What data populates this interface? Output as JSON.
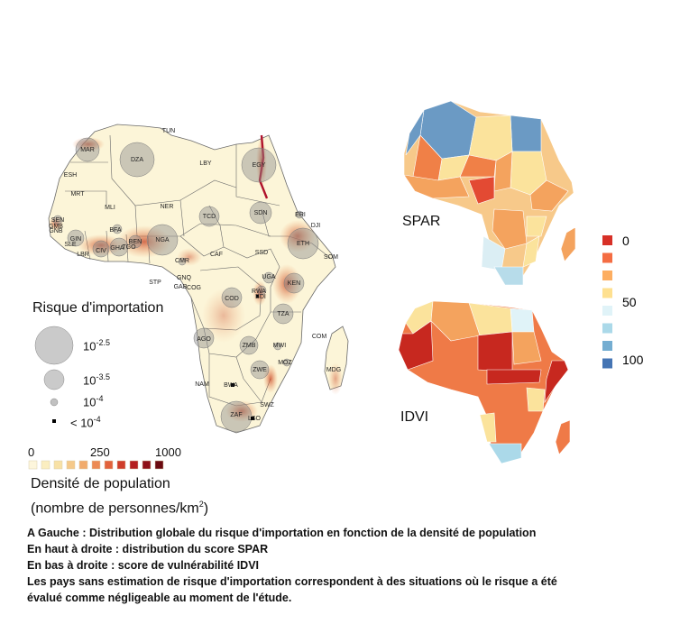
{
  "risk_legend": {
    "title": "Risque d'importation",
    "levels": [
      {
        "label_base": "10",
        "label_exp": "-2.5"
      },
      {
        "label_base": "10",
        "label_exp": "-3.5"
      },
      {
        "label_base": "10",
        "label_exp": "-4"
      },
      {
        "label_base": "< 10",
        "label_exp": "-4"
      }
    ]
  },
  "density_legend": {
    "ticks": [
      "0",
      "250",
      "1000"
    ],
    "title_line1": "Densité de population",
    "title_line2_prefix": "(nombre de personnes/km",
    "title_line2_exp": "2",
    "title_line2_suffix": ")",
    "colors": [
      "#fdf6dc",
      "#fbeec0",
      "#f8e1a6",
      "#f5c98a",
      "#f1ab6c",
      "#ec8a52",
      "#e2623b",
      "#cf3d2a",
      "#b4201f",
      "#8e1117",
      "#6b0a10"
    ]
  },
  "maps": {
    "spar_label": "SPAR",
    "idvi_label": "IDVI"
  },
  "score_legend": {
    "ticks": [
      "0",
      "50",
      "100"
    ],
    "colors": [
      "#d73027",
      "#f46d43",
      "#fdae61",
      "#fee090",
      "#e0f3f8",
      "#abd9e9",
      "#74add1",
      "#4575b4"
    ]
  },
  "countries": [
    "TUN",
    "MAR",
    "DZA",
    "LBY",
    "EGY",
    "ESH",
    "MRT",
    "MLI",
    "NER",
    "TCD",
    "SDN",
    "ERI",
    "DJI",
    "SEN",
    "GMB",
    "GNB",
    "GIN",
    "SLE",
    "LBR",
    "CIV",
    "GHA",
    "TGO",
    "BEN",
    "BFA",
    "NGA",
    "CMR",
    "CAF",
    "SSD",
    "ETH",
    "SOM",
    "STP",
    "GNQ",
    "GAB",
    "COG",
    "COD",
    "UGA",
    "KEN",
    "RWA",
    "BDI",
    "TZA",
    "AGO",
    "ZMB",
    "MWI",
    "MOZ",
    "COM",
    "MDG",
    "ZWE",
    "NAM",
    "BWA",
    "ZAF",
    "SWZ",
    "LSO"
  ],
  "caption": [
    "A Gauche : Distribution globale du risque d'importation en fonction de la densité de population",
    "En haut à droite : distribution du score SPAR",
    "En bas à droite : score de vulnérabilité IDVI",
    "Les pays sans estimation de risque d'importation correspondent à des situations où le risque a été",
    "évalué comme négligeable au moment de l'étude."
  ]
}
